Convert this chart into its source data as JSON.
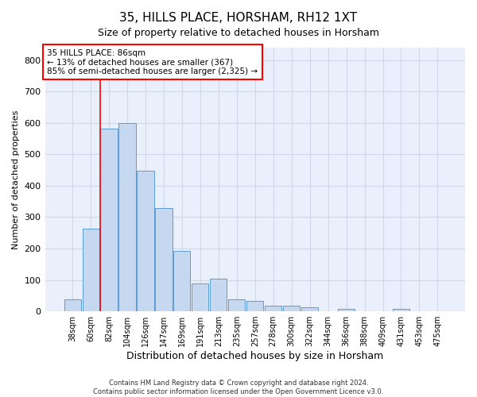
{
  "title1": "35, HILLS PLACE, HORSHAM, RH12 1XT",
  "title2": "Size of property relative to detached houses in Horsham",
  "xlabel": "Distribution of detached houses by size in Horsham",
  "ylabel": "Number of detached properties",
  "bar_labels": [
    "38sqm",
    "60sqm",
    "82sqm",
    "104sqm",
    "126sqm",
    "147sqm",
    "169sqm",
    "191sqm",
    "213sqm",
    "235sqm",
    "257sqm",
    "278sqm",
    "300sqm",
    "322sqm",
    "344sqm",
    "366sqm",
    "388sqm",
    "409sqm",
    "431sqm",
    "453sqm",
    "475sqm"
  ],
  "bar_heights": [
    38,
    263,
    583,
    600,
    447,
    330,
    193,
    90,
    103,
    37,
    32,
    17,
    17,
    13,
    0,
    7,
    0,
    0,
    7,
    0,
    0
  ],
  "bar_color": "#c5d8f0",
  "bar_edge_color": "#5b9bd5",
  "grid_color": "#d0d8e8",
  "background_color": "#eaf0fb",
  "vline_color": "red",
  "vline_x_index": 2,
  "annotation_line1": "35 HILLS PLACE: 86sqm",
  "annotation_line2": "← 13% of detached houses are smaller (367)",
  "annotation_line3": "85% of semi-detached houses are larger (2,325) →",
  "annotation_box_color": "red",
  "footer1": "Contains HM Land Registry data © Crown copyright and database right 2024.",
  "footer2": "Contains public sector information licensed under the Open Government Licence v3.0.",
  "ylim": [
    0,
    840
  ],
  "yticks": [
    0,
    100,
    200,
    300,
    400,
    500,
    600,
    700,
    800
  ]
}
